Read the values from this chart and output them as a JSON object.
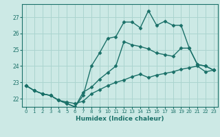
{
  "xlabel": "Humidex (Indice chaleur)",
  "background_color": "#cce9e5",
  "grid_color": "#aad4cf",
  "line_color": "#1a7068",
  "xlim": [
    -0.5,
    23.5
  ],
  "ylim": [
    21.5,
    27.8
  ],
  "yticks": [
    22,
    23,
    24,
    25,
    26,
    27
  ],
  "xticks": [
    0,
    1,
    2,
    3,
    4,
    5,
    6,
    7,
    8,
    9,
    10,
    11,
    12,
    13,
    14,
    15,
    16,
    17,
    18,
    19,
    20,
    21,
    22,
    23
  ],
  "line1_x": [
    0,
    1,
    2,
    3,
    4,
    5,
    6,
    7,
    8,
    9,
    10,
    11,
    12,
    13,
    14,
    15,
    16,
    17,
    18,
    19,
    20,
    21,
    22,
    23
  ],
  "line1_y": [
    22.8,
    22.5,
    22.3,
    22.2,
    21.9,
    21.8,
    21.7,
    21.85,
    22.3,
    22.55,
    22.8,
    23.0,
    23.15,
    23.35,
    23.5,
    23.3,
    23.45,
    23.55,
    23.65,
    23.8,
    23.9,
    24.0,
    23.65,
    23.75
  ],
  "line2_x": [
    0,
    1,
    2,
    3,
    4,
    5,
    6,
    7,
    8,
    9,
    10,
    11,
    12,
    13,
    14,
    15,
    16,
    17,
    18,
    19,
    20,
    21,
    22,
    23
  ],
  "line2_y": [
    22.8,
    22.5,
    22.3,
    22.2,
    21.9,
    21.7,
    21.5,
    22.2,
    24.0,
    24.8,
    25.7,
    25.8,
    26.7,
    26.7,
    26.35,
    27.4,
    26.5,
    26.75,
    26.5,
    26.5,
    25.1,
    24.1,
    24.0,
    23.75
  ],
  "line3_x": [
    0,
    1,
    2,
    3,
    4,
    5,
    6,
    7,
    8,
    9,
    10,
    11,
    12,
    13,
    14,
    15,
    16,
    17,
    18,
    19,
    20,
    21,
    22,
    23
  ],
  "line3_y": [
    22.8,
    22.5,
    22.3,
    22.2,
    21.9,
    21.7,
    21.5,
    22.4,
    22.7,
    23.2,
    23.6,
    24.0,
    25.5,
    25.3,
    25.2,
    25.05,
    24.8,
    24.7,
    24.6,
    25.1,
    25.1,
    24.1,
    24.0,
    23.75
  ],
  "marker": "D",
  "markersize": 2.5,
  "linewidth": 1.0
}
